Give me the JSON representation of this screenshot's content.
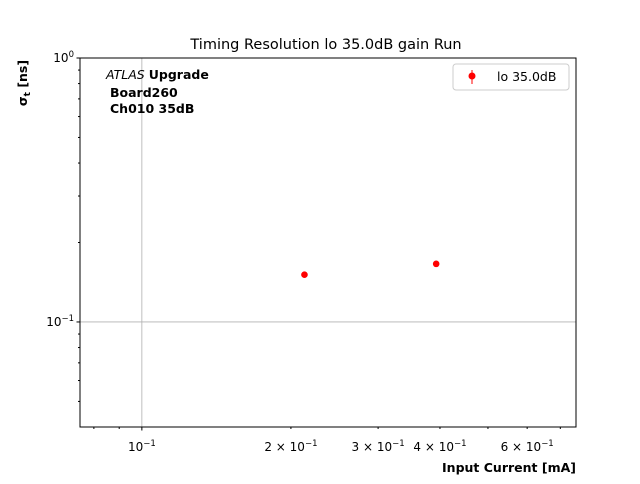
{
  "chart_data": {
    "type": "scatter",
    "title": "Timing Resolution lo 35.0dB gain Run",
    "xlabel": "Input Current [mA]",
    "ylabel_main": "σ",
    "ylabel_sub": "t",
    "ylabel_unit": " [ns]",
    "xscale": "log",
    "yscale": "log",
    "xlim": [
      0.075,
      0.753
    ],
    "ylim": [
      0.04,
      1.0
    ],
    "grid": "major",
    "legend_position": "top-right",
    "x_major_ticks": [
      {
        "value": 0.1,
        "base": "10",
        "exp": "−1"
      }
    ],
    "x_minor_labeled": [
      {
        "value": 0.2,
        "mant": "2",
        "base": "10",
        "exp": "−1"
      },
      {
        "value": 0.3,
        "mant": "3",
        "base": "10",
        "exp": "−1"
      },
      {
        "value": 0.4,
        "mant": "4",
        "base": "10",
        "exp": "−1"
      },
      {
        "value": 0.6,
        "mant": "6",
        "base": "10",
        "exp": "−1"
      }
    ],
    "y_major_ticks": [
      {
        "value": 1.0,
        "base": "10",
        "exp": "0"
      },
      {
        "value": 0.1,
        "base": "10",
        "exp": "−1"
      }
    ],
    "annotation": {
      "italic": "ATLAS",
      "bold": "Upgrade",
      "line2": "Board260",
      "line3": "Ch010 35dB"
    },
    "series": [
      {
        "name": "lo 35.0dB",
        "color": "#ff0000",
        "x": [
          0.213,
          0.393
        ],
        "y": [
          0.151,
          0.166
        ]
      }
    ]
  }
}
